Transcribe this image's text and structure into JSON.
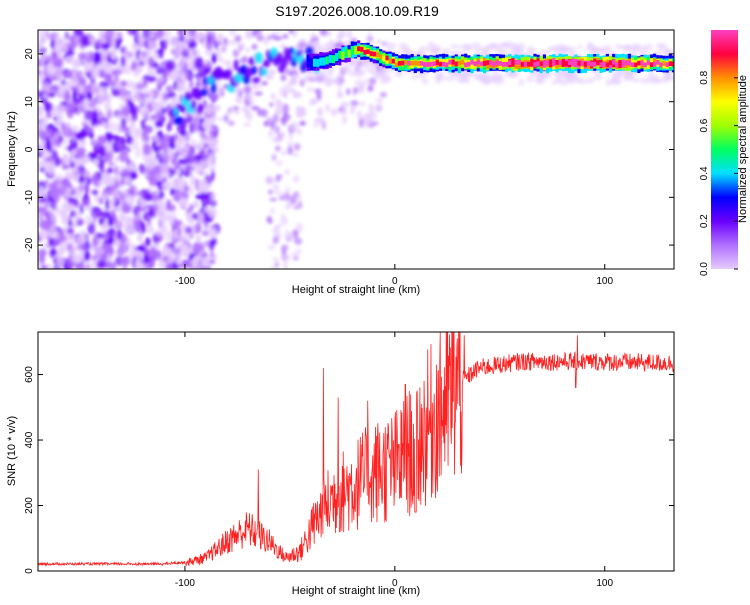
{
  "figure_title": "S197.2026.008.10.09.R19",
  "colors": {
    "snr_line": "#ff2020",
    "axis": "#000000",
    "colorscale": [
      "#e6ccff",
      "#b070ff",
      "#6a00ff",
      "#0000ff",
      "#00e0ff",
      "#00ff60",
      "#a0ff00",
      "#ffff00",
      "#ff9000",
      "#ff0040",
      "#ff40c0"
    ]
  },
  "chart_data": [
    {
      "id": "spectrogram",
      "type": "heatmap",
      "xlabel": "Height of straight line (km)",
      "ylabel": "Frequency (Hz)",
      "xlim": [
        -170,
        133
      ],
      "ylim": [
        -25,
        25
      ],
      "x_ticks": [
        -100,
        0,
        100
      ],
      "y_ticks": [
        -20,
        -10,
        0,
        10,
        20
      ],
      "colorbar": {
        "label": "Normalized spectral amplitude",
        "range": [
          0,
          1
        ],
        "ticks": [
          "0.0",
          "0.2",
          "0.4",
          "0.6",
          "0.8"
        ]
      },
      "ridge": [
        {
          "x": -105,
          "freq": 7,
          "amp": 0.25
        },
        {
          "x": -95,
          "freq": 10,
          "amp": 0.25
        },
        {
          "x": -85,
          "freq": 14,
          "amp": 0.35
        },
        {
          "x": -75,
          "freq": 16,
          "amp": 0.4
        },
        {
          "x": -65,
          "freq": 17,
          "amp": 0.35
        },
        {
          "x": -50,
          "freq": 19,
          "amp": 0.3
        },
        {
          "x": -40,
          "freq": 18,
          "amp": 0.4
        },
        {
          "x": -30,
          "freq": 19,
          "amp": 0.45
        },
        {
          "x": -25,
          "freq": 20,
          "amp": 0.5
        },
        {
          "x": -18,
          "freq": 21,
          "amp": 0.6
        },
        {
          "x": -10,
          "freq": 20,
          "amp": 0.6
        },
        {
          "x": 0,
          "freq": 18,
          "amp": 0.6
        },
        {
          "x": 10,
          "freq": 18,
          "amp": 0.65
        },
        {
          "x": 30,
          "freq": 18,
          "amp": 0.7
        },
        {
          "x": 50,
          "freq": 18,
          "amp": 0.8
        },
        {
          "x": 80,
          "freq": 18,
          "amp": 0.9
        },
        {
          "x": 110,
          "freq": 18,
          "amp": 0.85
        },
        {
          "x": 133,
          "freq": 18,
          "amp": 0.6
        }
      ]
    },
    {
      "id": "snr",
      "type": "line",
      "xlabel": "Height of straight line (km)",
      "ylabel": "SNR (10 * v/v)",
      "xlim": [
        -170,
        133
      ],
      "ylim": [
        0,
        730
      ],
      "x_ticks": [
        -100,
        0,
        100
      ],
      "y_ticks": [
        0,
        200,
        400,
        600
      ],
      "envelope": [
        {
          "x": -170,
          "y": 20
        },
        {
          "x": -110,
          "y": 20
        },
        {
          "x": -100,
          "y": 25
        },
        {
          "x": -90,
          "y": 40
        },
        {
          "x": -80,
          "y": 90
        },
        {
          "x": -70,
          "y": 130
        },
        {
          "x": -60,
          "y": 90
        },
        {
          "x": -52,
          "y": 40
        },
        {
          "x": -45,
          "y": 60
        },
        {
          "x": -38,
          "y": 150
        },
        {
          "x": -30,
          "y": 220
        },
        {
          "x": -20,
          "y": 260
        },
        {
          "x": -10,
          "y": 300
        },
        {
          "x": 0,
          "y": 320
        },
        {
          "x": 10,
          "y": 380
        },
        {
          "x": 20,
          "y": 480
        },
        {
          "x": 30,
          "y": 570
        },
        {
          "x": 40,
          "y": 620
        },
        {
          "x": 60,
          "y": 640
        },
        {
          "x": 90,
          "y": 640
        },
        {
          "x": 133,
          "y": 635
        }
      ],
      "spikes": [
        {
          "x": -65,
          "y": 310
        },
        {
          "x": -34,
          "y": 620
        },
        {
          "x": -27,
          "y": 530
        },
        {
          "x": -13,
          "y": 520
        },
        {
          "x": 5,
          "y": 570
        },
        {
          "x": 33,
          "y": 720
        },
        {
          "x": 87,
          "y": 720
        }
      ]
    }
  ]
}
